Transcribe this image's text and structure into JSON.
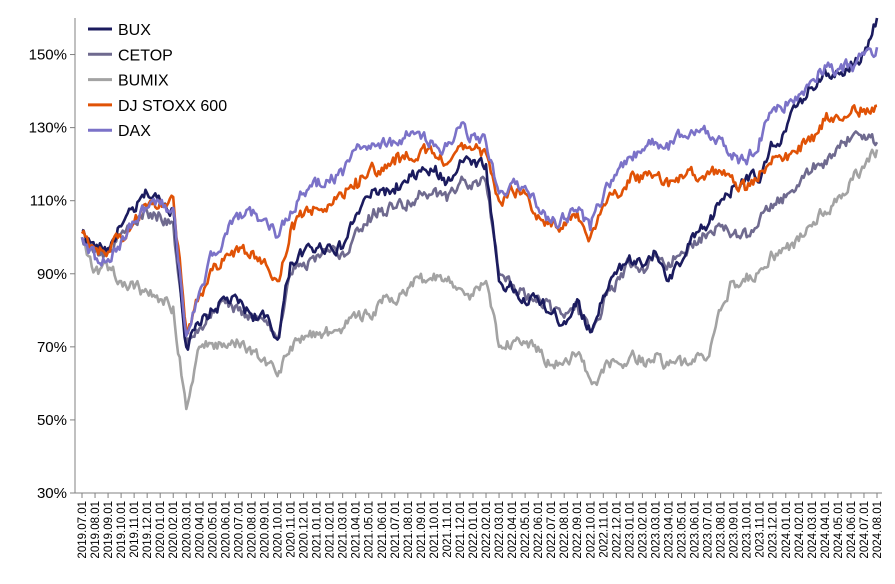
{
  "chart_data": {
    "type": "line",
    "title": "",
    "xlabel": "",
    "ylabel": "",
    "ylim": [
      30,
      160
    ],
    "yticks": [
      "30%",
      "50%",
      "70%",
      "90%",
      "110%",
      "130%",
      "150%"
    ],
    "ytick_values": [
      30,
      50,
      70,
      90,
      110,
      130,
      150
    ],
    "grid": false,
    "legend_position": "top-left",
    "x_categories": [
      "2019.07.01",
      "2019.08.01",
      "2019.09.01",
      "2019.10.01",
      "2019.11.01",
      "2019.12.01",
      "2020.01.01",
      "2020.02.01",
      "2020.03.01",
      "2020.04.01",
      "2020.05.01",
      "2020.06.01",
      "2020.07.01",
      "2020.08.01",
      "2020.09.01",
      "2020.10.01",
      "2020.11.01",
      "2020.12.01",
      "2021.01.01",
      "2021.02.01",
      "2021.03.01",
      "2021.04.01",
      "2021.05.01",
      "2021.06.01",
      "2021.07.01",
      "2021.08.01",
      "2021.09.01",
      "2021.10.01",
      "2021.11.01",
      "2021.12.01",
      "2022.01.01",
      "2022.02.01",
      "2022.03.01",
      "2022.04.01",
      "2022.05.01",
      "2022.06.01",
      "2022.07.01",
      "2022.08.01",
      "2022.09.01",
      "2022.10.01",
      "2022.11.01",
      "2022.12.01",
      "2023.01.01",
      "2023.02.01",
      "2023.03.01",
      "2023.04.01",
      "2023.05.01",
      "2023.06.01",
      "2023.07.01",
      "2023.08.01",
      "2023.09.01",
      "2023.10.01",
      "2023.11.01",
      "2023.12.01",
      "2024.01.01",
      "2024.02.01",
      "2024.03.01",
      "2024.04.01",
      "2024.05.01",
      "2024.06.01",
      "2024.07.01",
      "2024.08.01"
    ],
    "series": [
      {
        "name": "BUX",
        "color": "#1b1b5e",
        "values": [
          102,
          97,
          97,
          103,
          107,
          112,
          110,
          108,
          70,
          76,
          80,
          83,
          82,
          79,
          78,
          72,
          93,
          96,
          97,
          98,
          97,
          106,
          111,
          113,
          112,
          115,
          118,
          118,
          115,
          121,
          121,
          120,
          88,
          86,
          82,
          83,
          79,
          77,
          83,
          74,
          84,
          90,
          95,
          92,
          96,
          88,
          93,
          100,
          103,
          110,
          114,
          117,
          115,
          125,
          129,
          137,
          141,
          146,
          145,
          148,
          150,
          160
        ]
      },
      {
        "name": "CETOP",
        "color": "#6f6a8f",
        "values": [
          100,
          96,
          96,
          101,
          104,
          107,
          106,
          104,
          70,
          75,
          80,
          82,
          80,
          78,
          77,
          72,
          90,
          93,
          95,
          96,
          96,
          102,
          106,
          108,
          108,
          110,
          112,
          113,
          110,
          115,
          115,
          115,
          90,
          87,
          84,
          84,
          80,
          78,
          82,
          74,
          82,
          88,
          93,
          92,
          95,
          93,
          96,
          99,
          101,
          103,
          101,
          100,
          105,
          108,
          111,
          114,
          118,
          121,
          125,
          127,
          128,
          126
        ]
      },
      {
        "name": "BUMIX",
        "color": "#a3a3a3",
        "values": [
          100,
          91,
          91,
          88,
          86,
          85,
          83,
          81,
          53,
          70,
          71,
          70,
          71,
          68,
          67,
          62,
          70,
          72,
          74,
          74,
          75,
          78,
          79,
          82,
          82,
          86,
          90,
          90,
          88,
          86,
          84,
          88,
          70,
          71,
          71,
          70,
          65,
          66,
          68,
          61,
          63,
          66,
          67,
          67,
          68,
          65,
          65,
          66,
          67,
          80,
          88,
          90,
          91,
          95,
          97,
          99,
          103,
          107,
          111,
          116,
          119,
          124
        ]
      },
      {
        "name": "DJ STOXX 600",
        "color": "#e05206",
        "values": [
          101,
          97,
          96,
          100,
          104,
          108,
          110,
          111,
          75,
          84,
          91,
          95,
          96,
          96,
          94,
          88,
          102,
          106,
          108,
          109,
          111,
          116,
          118,
          119,
          120,
          122,
          124,
          123,
          120,
          125,
          124,
          123,
          110,
          113,
          112,
          106,
          103,
          104,
          107,
          100,
          109,
          112,
          115,
          116,
          117,
          114,
          117,
          117,
          118,
          118,
          115,
          113,
          118,
          122,
          123,
          125,
          128,
          132,
          133,
          134,
          135,
          136
        ]
      },
      {
        "name": "DAX",
        "color": "#7b72c8",
        "values": [
          100,
          94,
          94,
          99,
          104,
          108,
          109,
          108,
          73,
          85,
          95,
          101,
          105,
          106,
          105,
          100,
          107,
          112,
          114,
          115,
          117,
          124,
          125,
          126,
          126,
          128,
          127,
          125,
          125,
          130,
          128,
          126,
          112,
          115,
          114,
          108,
          104,
          105,
          107,
          102,
          111,
          117,
          122,
          124,
          126,
          124,
          128,
          128,
          129,
          127,
          123,
          120,
          127,
          135,
          137,
          139,
          143,
          147,
          146,
          147,
          150,
          152
        ]
      }
    ]
  }
}
